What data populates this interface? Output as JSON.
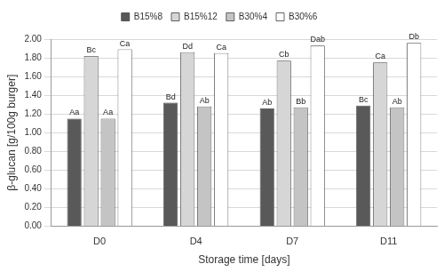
{
  "chart_data": {
    "type": "bar",
    "categories": [
      "D0",
      "D4",
      "D7",
      "D11"
    ],
    "series": [
      {
        "name": "B15%8",
        "color": "#595959",
        "values": [
          1.15,
          1.32,
          1.26,
          1.29
        ],
        "annotations": [
          "Aa",
          "Bd",
          "Ab",
          "Bc"
        ]
      },
      {
        "name": "B15%12",
        "color": "#d6d6d6",
        "values": [
          1.82,
          1.86,
          1.77,
          1.75
        ],
        "annotations": [
          "Bc",
          "Dd",
          "Cb",
          "Ca"
        ]
      },
      {
        "name": "B30%4",
        "color": "#c4c4c4",
        "values": [
          1.15,
          1.28,
          1.27,
          1.27
        ],
        "annotations": [
          "Aa",
          "Ab",
          "Bb",
          "Ab"
        ]
      },
      {
        "name": "B30%6",
        "color": "#ffffff",
        "values": [
          1.89,
          1.85,
          1.93,
          1.96
        ],
        "annotations": [
          "Ca",
          "Ca",
          "Dab",
          "Db"
        ]
      }
    ],
    "x_label": "Storage time [days]",
    "y_label": "β-glucan [g/100g burger]",
    "ylim": [
      0,
      2
    ],
    "yticks": [
      {
        "value": 0,
        "label": "0.00"
      },
      {
        "value": 0.2,
        "label": "0.20"
      },
      {
        "value": 0.4,
        "label": "0.40"
      },
      {
        "value": 0.6,
        "label": "0.60"
      },
      {
        "value": 0.8,
        "label": "0.80"
      },
      {
        "value": 1,
        "label": "1.00"
      },
      {
        "value": 1.2,
        "label": "1.20"
      },
      {
        "value": 1.4,
        "label": "1.40"
      },
      {
        "value": 1.6,
        "label": "1.60"
      },
      {
        "value": 1.8,
        "label": "1.80"
      },
      {
        "value": 2,
        "label": "2.00"
      }
    ],
    "grid": true,
    "legend": "top"
  }
}
